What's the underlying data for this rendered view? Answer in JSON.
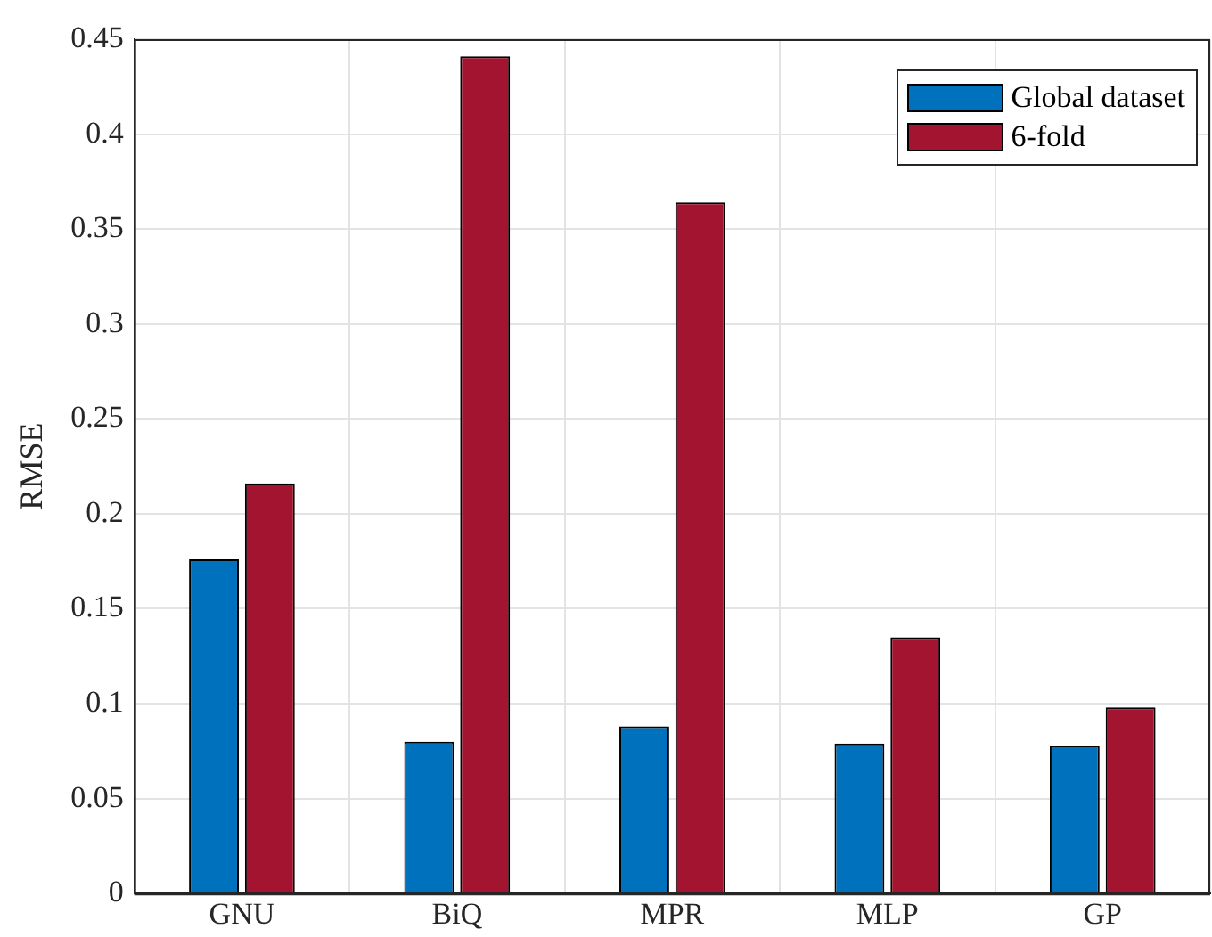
{
  "chart_data": {
    "type": "bar",
    "ylabel": "RMSE",
    "categories": [
      "GNU",
      "BiQ",
      "MPR",
      "MLP",
      "GP"
    ],
    "series": [
      {
        "name": "Global dataset",
        "color": "#0072bd",
        "values": [
          0.176,
          0.08,
          0.088,
          0.079,
          0.078
        ]
      },
      {
        "name": "6-fold",
        "color": "#a2142f",
        "values": [
          0.216,
          0.441,
          0.364,
          0.135,
          0.098
        ]
      }
    ],
    "ylim": [
      0,
      0.45
    ],
    "yticks": [
      0,
      0.05,
      0.1,
      0.15,
      0.2,
      0.25,
      0.3,
      0.35,
      0.4,
      0.45
    ],
    "grid": true,
    "legend": "top right"
  }
}
